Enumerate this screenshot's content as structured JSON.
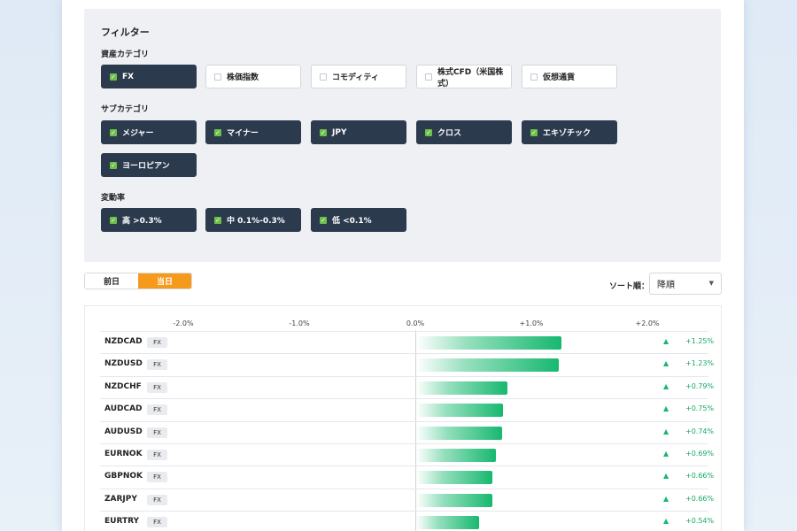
{
  "filters": {
    "title": "フィルター",
    "asset_category": {
      "label": "資産カテゴリ",
      "options": [
        {
          "label": "FX",
          "checked": true
        },
        {
          "label": "株価指数",
          "checked": false
        },
        {
          "label": "コモディティ",
          "checked": false
        },
        {
          "label": "株式CFD（米国株式）",
          "checked": false
        },
        {
          "label": "仮想通貨",
          "checked": false
        }
      ]
    },
    "sub_category": {
      "label": "サブカテゴリ",
      "options": [
        {
          "label": "メジャー",
          "checked": true
        },
        {
          "label": "マイナー",
          "checked": true
        },
        {
          "label": "JPY",
          "checked": true
        },
        {
          "label": "クロス",
          "checked": true
        },
        {
          "label": "エキゾチック",
          "checked": true
        },
        {
          "label": "ヨーロピアン",
          "checked": true
        }
      ]
    },
    "volatility": {
      "label": "変動率",
      "options": [
        {
          "label": "高 >0.3%",
          "checked": true
        },
        {
          "label": "中 0.1%-0.3%",
          "checked": true
        },
        {
          "label": "低 <0.1%",
          "checked": true
        }
      ]
    },
    "check_mark": "✓"
  },
  "day_toggle": {
    "previous": "前日",
    "today": "当日",
    "active": "today"
  },
  "sort": {
    "label": "ソート順：",
    "value": "降順",
    "chevron_icon": "chevron-down-icon"
  },
  "chart_data": {
    "type": "bar",
    "orientation": "horizontal",
    "x_ticks": [
      "-2.0%",
      "-1.0%",
      "0.0%",
      "+1.0%",
      "+2.0%"
    ],
    "xlim": [
      -2.0,
      2.0
    ],
    "rows": [
      {
        "symbol": "NZDCAD",
        "tag": "FX",
        "value": 1.25,
        "label": "+1.25%"
      },
      {
        "symbol": "NZDUSD",
        "tag": "FX",
        "value": 1.23,
        "label": "+1.23%"
      },
      {
        "symbol": "NZDCHF",
        "tag": "FX",
        "value": 0.79,
        "label": "+0.79%"
      },
      {
        "symbol": "AUDCAD",
        "tag": "FX",
        "value": 0.75,
        "label": "+0.75%"
      },
      {
        "symbol": "AUDUSD",
        "tag": "FX",
        "value": 0.74,
        "label": "+0.74%"
      },
      {
        "symbol": "EURNOK",
        "tag": "FX",
        "value": 0.69,
        "label": "+0.69%"
      },
      {
        "symbol": "GBPNOK",
        "tag": "FX",
        "value": 0.66,
        "label": "+0.66%"
      },
      {
        "symbol": "ZARJPY",
        "tag": "FX",
        "value": 0.66,
        "label": "+0.66%"
      },
      {
        "symbol": "EURTRY",
        "tag": "FX",
        "value": 0.54,
        "label": "+0.54%"
      }
    ],
    "up_arrow": "▲",
    "bar_color": "#17b86f"
  }
}
